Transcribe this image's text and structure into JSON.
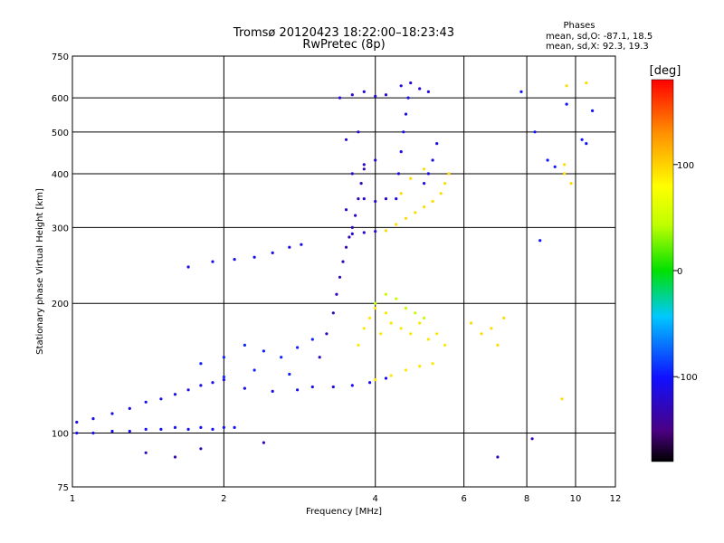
{
  "chart_data": {
    "type": "scatter",
    "title": "Tromsø 20120423 18:22:00–18:23:43",
    "subtitle": "RwPretec (8p)",
    "xlabel": "Frequency [MHz]",
    "ylabel": "Stationary phase Virtual Height [km]",
    "x_scale": "log",
    "y_scale": "log",
    "xlim": [
      1,
      12
    ],
    "ylim": [
      75,
      750
    ],
    "x_ticks": [
      1,
      2,
      4,
      6,
      8,
      10,
      12
    ],
    "x_tick_labels": [
      "1",
      "2",
      "4",
      "6",
      "8",
      "10",
      "12"
    ],
    "y_ticks": [
      75,
      100,
      200,
      300,
      400,
      500,
      600,
      750
    ],
    "y_tick_labels": [
      "75",
      "100",
      "200",
      "300",
      "400",
      "500",
      "600",
      "750"
    ],
    "grid": true,
    "stats": {
      "heading": "Phases",
      "line_o": "mean, sd,O:  -87.1, 18.5",
      "line_x": "mean, sd,X:  92.3, 19.3"
    },
    "colorbar": {
      "label": "[deg]",
      "range": [
        -180,
        180
      ],
      "ticks": [
        100,
        0,
        -100
      ],
      "tick_labels": [
        "100",
        "0",
        "-100"
      ]
    },
    "series": [
      {
        "phase_deg": -110,
        "points": [
          [
            1.02,
            106
          ],
          [
            1.1,
            108
          ],
          [
            1.2,
            111
          ],
          [
            1.3,
            114
          ],
          [
            1.4,
            118
          ],
          [
            1.5,
            120
          ],
          [
            1.6,
            123
          ],
          [
            1.7,
            126
          ],
          [
            1.8,
            129
          ],
          [
            1.9,
            131
          ],
          [
            2.0,
            133
          ],
          [
            2.2,
            127
          ],
          [
            2.5,
            125
          ],
          [
            2.8,
            126
          ],
          [
            3.0,
            128
          ],
          [
            3.3,
            128
          ],
          [
            3.6,
            129
          ],
          [
            3.9,
            131
          ],
          [
            4.2,
            134
          ]
        ]
      },
      {
        "phase_deg": -105,
        "points": [
          [
            1.02,
            100
          ],
          [
            1.1,
            100
          ],
          [
            1.2,
            101
          ],
          [
            1.3,
            101
          ],
          [
            1.4,
            102
          ],
          [
            1.5,
            102
          ],
          [
            1.6,
            103
          ],
          [
            1.7,
            102
          ],
          [
            1.8,
            103
          ],
          [
            1.9,
            102
          ],
          [
            2.0,
            103
          ],
          [
            2.1,
            103
          ]
        ]
      },
      {
        "phase_deg": -95,
        "points": [
          [
            1.8,
            145
          ],
          [
            2.0,
            150
          ],
          [
            2.2,
            160
          ],
          [
            2.4,
            155
          ],
          [
            2.6,
            150
          ],
          [
            2.8,
            158
          ],
          [
            3.0,
            165
          ],
          [
            2.0,
            135
          ],
          [
            2.3,
            140
          ],
          [
            2.7,
            137
          ]
        ]
      },
      {
        "phase_deg": -110,
        "points": [
          [
            1.7,
            243
          ],
          [
            1.9,
            250
          ],
          [
            2.1,
            253
          ],
          [
            2.3,
            256
          ],
          [
            2.5,
            262
          ],
          [
            2.7,
            270
          ],
          [
            2.85,
            274
          ]
        ]
      },
      {
        "phase_deg": -130,
        "points": [
          [
            3.1,
            150
          ],
          [
            3.2,
            170
          ],
          [
            3.3,
            190
          ],
          [
            3.35,
            210
          ],
          [
            3.4,
            230
          ],
          [
            3.45,
            250
          ],
          [
            3.5,
            270
          ],
          [
            3.55,
            285
          ],
          [
            3.6,
            300
          ],
          [
            3.65,
            320
          ],
          [
            3.7,
            350
          ],
          [
            3.75,
            380
          ],
          [
            3.8,
            410
          ]
        ]
      },
      {
        "phase_deg": -120,
        "points": [
          [
            3.6,
            290
          ],
          [
            3.8,
            292
          ],
          [
            4.0,
            294
          ],
          [
            3.5,
            330
          ],
          [
            3.8,
            350
          ],
          [
            4.0,
            345
          ],
          [
            4.2,
            350
          ],
          [
            3.6,
            400
          ],
          [
            3.8,
            420
          ],
          [
            4.0,
            430
          ],
          [
            3.5,
            480
          ],
          [
            3.7,
            500
          ]
        ]
      },
      {
        "phase_deg": -115,
        "points": [
          [
            3.4,
            600
          ],
          [
            3.6,
            610
          ],
          [
            3.8,
            620
          ],
          [
            4.0,
            605
          ],
          [
            4.2,
            610
          ],
          [
            4.5,
            640
          ],
          [
            4.7,
            650
          ],
          [
            4.9,
            630
          ],
          [
            5.1,
            620
          ]
        ]
      },
      {
        "phase_deg": -110,
        "points": [
          [
            4.4,
            350
          ],
          [
            4.45,
            400
          ],
          [
            4.5,
            450
          ],
          [
            4.55,
            500
          ],
          [
            4.6,
            550
          ],
          [
            4.65,
            600
          ],
          [
            5.0,
            380
          ],
          [
            5.1,
            400
          ],
          [
            5.2,
            430
          ],
          [
            5.3,
            470
          ]
        ]
      },
      {
        "phase_deg": 95,
        "points": [
          [
            4.2,
            295
          ],
          [
            4.4,
            305
          ],
          [
            4.6,
            315
          ],
          [
            4.8,
            325
          ],
          [
            5.0,
            335
          ],
          [
            5.2,
            345
          ],
          [
            5.4,
            360
          ],
          [
            5.5,
            380
          ],
          [
            5.6,
            400
          ],
          [
            4.7,
            390
          ],
          [
            5.0,
            410
          ],
          [
            4.5,
            360
          ]
        ]
      },
      {
        "phase_deg": 90,
        "points": [
          [
            3.7,
            160
          ],
          [
            3.8,
            175
          ],
          [
            3.9,
            185
          ],
          [
            4.0,
            195
          ],
          [
            4.1,
            170
          ],
          [
            4.2,
            190
          ],
          [
            4.3,
            180
          ],
          [
            4.5,
            175
          ],
          [
            4.7,
            170
          ],
          [
            4.9,
            180
          ],
          [
            5.1,
            165
          ],
          [
            5.3,
            170
          ],
          [
            5.5,
            160
          ],
          [
            4.0,
            133
          ],
          [
            4.3,
            136
          ],
          [
            4.6,
            140
          ],
          [
            4.9,
            143
          ],
          [
            5.2,
            145
          ]
        ]
      },
      {
        "phase_deg": 45,
        "points": [
          [
            4.0,
            200
          ],
          [
            4.2,
            210
          ],
          [
            4.4,
            205
          ],
          [
            4.6,
            195
          ],
          [
            4.8,
            190
          ],
          [
            5.0,
            185
          ]
        ]
      },
      {
        "phase_deg": 95,
        "points": [
          [
            6.2,
            180
          ],
          [
            6.5,
            170
          ],
          [
            6.8,
            175
          ],
          [
            7.0,
            160
          ],
          [
            7.2,
            185
          ],
          [
            9.4,
            120
          ],
          [
            9.5,
            420
          ],
          [
            9.5,
            400
          ],
          [
            9.6,
            640
          ],
          [
            9.8,
            380
          ],
          [
            10.5,
            650
          ]
        ]
      },
      {
        "phase_deg": -100,
        "points": [
          [
            7.8,
            620
          ],
          [
            8.3,
            500
          ],
          [
            8.8,
            430
          ],
          [
            9.1,
            415
          ],
          [
            10.3,
            480
          ],
          [
            10.5,
            470
          ],
          [
            10.8,
            560
          ],
          [
            9.6,
            580
          ],
          [
            8.5,
            280
          ]
        ]
      },
      {
        "phase_deg": -130,
        "points": [
          [
            1.4,
            90
          ],
          [
            1.6,
            88
          ],
          [
            1.8,
            92
          ],
          [
            2.4,
            95
          ],
          [
            7.0,
            88
          ],
          [
            8.2,
            97
          ]
        ]
      }
    ]
  }
}
